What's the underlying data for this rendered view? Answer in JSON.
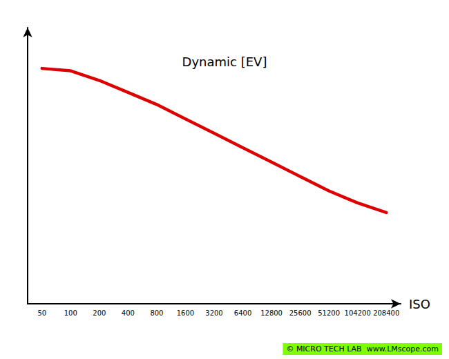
{
  "chart_data": {
    "type": "line",
    "categories": [
      "50",
      "100",
      "200",
      "400",
      "800",
      "1600",
      "3200",
      "6400",
      "12800",
      "25600",
      "51200",
      "104200",
      "208400"
    ],
    "values": [
      0.88,
      0.87,
      0.83,
      0.78,
      0.73,
      0.67,
      0.61,
      0.55,
      0.49,
      0.43,
      0.37,
      0.32,
      0.28
    ],
    "color": "#dd0000",
    "xlabel": "ISO",
    "annotations": [
      "Dynamic [EV]",
      "© MICRO TECH LAB  www.LMscope.com"
    ],
    "ylim": [
      -0.1,
      1.05
    ],
    "tick_labels": "x",
    "grid": false
  }
}
